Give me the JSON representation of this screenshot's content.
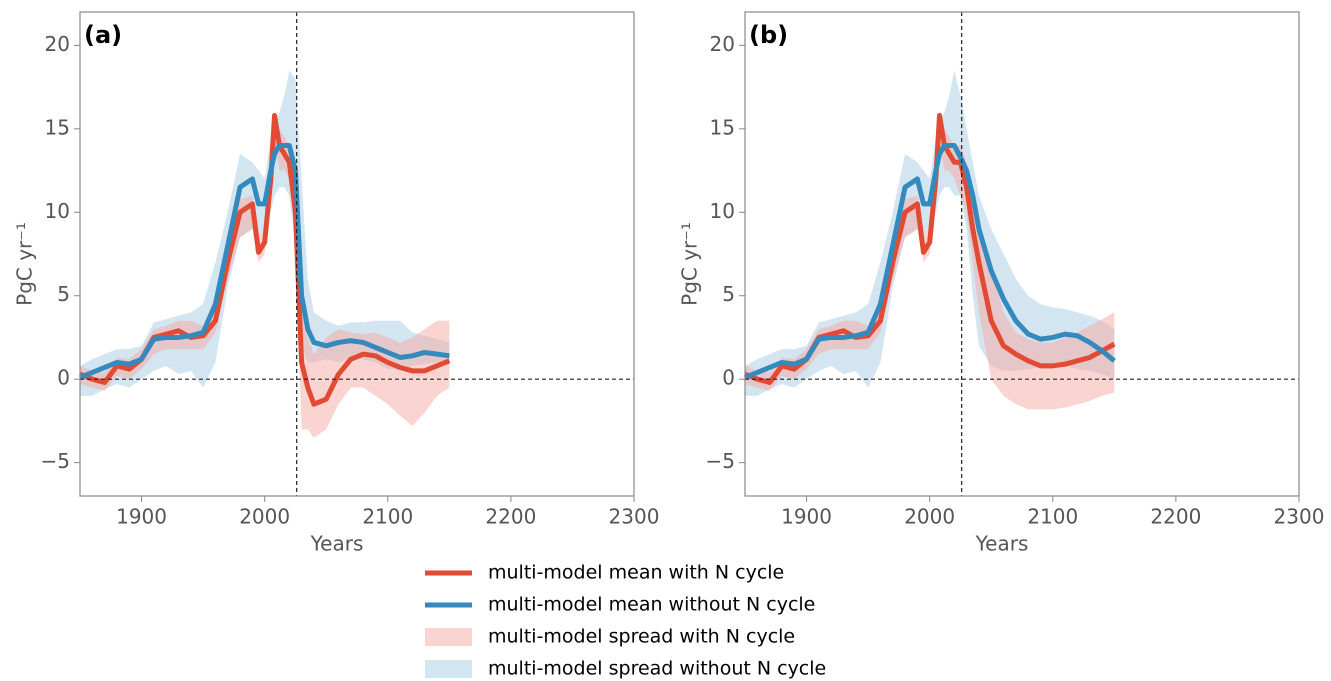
{
  "chart_data": [
    {
      "type": "line",
      "label": "(a)",
      "xlabel": "Years",
      "ylabel": "PgC yr⁻¹",
      "xlim": [
        1850,
        2300
      ],
      "xticks": [
        1900,
        2000,
        2100,
        2200,
        2300
      ],
      "ylim": [
        -7,
        22
      ],
      "yticks": [
        {
          "value": -5,
          "label": "−5"
        },
        0,
        5,
        10,
        15,
        20
      ],
      "hline": 0,
      "vline": 2026,
      "x": [
        1850,
        1860,
        1870,
        1880,
        1890,
        1900,
        1910,
        1920,
        1930,
        1940,
        1950,
        1960,
        1970,
        1980,
        1990,
        1995,
        2000,
        2005,
        2008,
        2012,
        2016,
        2020,
        2025,
        2030,
        2035,
        2040,
        2050,
        2060,
        2070,
        2080,
        2090,
        2100,
        2110,
        2120,
        2130,
        2140,
        2150
      ],
      "bands": [
        {
          "name": "multi-model spread without N cycle",
          "color": "#a9cbe6",
          "lower": [
            -1,
            -1,
            -0.6,
            -0.3,
            -0.5,
            0,
            0.5,
            0.8,
            0.3,
            0.5,
            -0.5,
            1,
            5.5,
            8.5,
            9,
            8.5,
            9,
            10,
            11,
            11.5,
            11.5,
            11,
            8,
            2,
            1,
            1,
            1.2,
            1,
            1.3,
            1.2,
            1,
            0.6,
            0.6,
            0.8,
            0.9,
            1,
            1
          ],
          "upper": [
            0.8,
            1.2,
            1.5,
            1.8,
            1.8,
            2,
            3.4,
            3.6,
            3.8,
            4,
            4.5,
            7,
            10,
            13.5,
            13,
            12.5,
            12,
            14.5,
            15.5,
            16,
            17,
            18.5,
            18,
            12,
            6,
            4,
            3.5,
            3.2,
            3.4,
            3.4,
            3.5,
            3.5,
            3.5,
            2.8,
            2.6,
            2.4,
            2.2
          ]
        },
        {
          "name": "multi-model spread with N cycle",
          "color": "#f5aaa2",
          "lower": [
            -0.3,
            -0.5,
            -0.7,
            0.2,
            0,
            0.6,
            1.5,
            1.8,
            1.8,
            1.8,
            1.8,
            2.8,
            6,
            8.5,
            9,
            7,
            7.5,
            11,
            14,
            12.5,
            12.5,
            12,
            8,
            -3,
            -3,
            -3.5,
            -3,
            -1.5,
            -0.5,
            -0.5,
            -1,
            -1.5,
            -2.2,
            -2.8,
            -2,
            -1,
            -0.5
          ],
          "upper": [
            0.8,
            0.5,
            0.4,
            1.3,
            1.2,
            1.8,
            3,
            3.2,
            3.5,
            3.5,
            3.2,
            4.5,
            7.8,
            10.8,
            11,
            8.5,
            9,
            13,
            16,
            15,
            14.5,
            14,
            12,
            4,
            2.5,
            1.5,
            2.5,
            3,
            2.8,
            2.7,
            2.8,
            2.5,
            2.2,
            2.5,
            3,
            3.5,
            3.5
          ]
        }
      ],
      "series": [
        {
          "name": "multi-model mean with N cycle",
          "color": "#e24a33",
          "values": [
            0.3,
            0,
            -0.2,
            0.8,
            0.6,
            1.2,
            2.5,
            2.7,
            2.9,
            2.5,
            2.6,
            3.5,
            7,
            10,
            10.5,
            7.6,
            8.2,
            12,
            15.8,
            14,
            13.5,
            13,
            10,
            1,
            -0.5,
            -1.5,
            -1.2,
            0.3,
            1.2,
            1.5,
            1.4,
            1,
            0.7,
            0.5,
            0.5,
            0.8,
            1.1
          ]
        },
        {
          "name": "multi-model mean without N cycle",
          "color": "#348abd",
          "values": [
            0.1,
            0.4,
            0.7,
            1,
            0.9,
            1.2,
            2.4,
            2.5,
            2.5,
            2.6,
            2.8,
            4.5,
            8,
            11.5,
            12,
            10.5,
            10.5,
            12.5,
            13.5,
            14,
            14,
            14,
            12.5,
            5,
            3,
            2.2,
            2,
            2.2,
            2.3,
            2.2,
            1.9,
            1.6,
            1.3,
            1.4,
            1.6,
            1.5,
            1.4
          ]
        }
      ]
    },
    {
      "type": "line",
      "label": "(b)",
      "xlabel": "Years",
      "ylabel": "PgC yr⁻¹",
      "xlim": [
        1850,
        2300
      ],
      "xticks": [
        1900,
        2000,
        2100,
        2200,
        2300
      ],
      "ylim": [
        -7,
        22
      ],
      "yticks": [
        {
          "value": -5,
          "label": "−5"
        },
        0,
        5,
        10,
        15,
        20
      ],
      "hline": 0,
      "vline": 2026,
      "x": [
        1850,
        1860,
        1870,
        1880,
        1890,
        1900,
        1910,
        1920,
        1930,
        1940,
        1950,
        1960,
        1970,
        1980,
        1990,
        1995,
        2000,
        2005,
        2008,
        2012,
        2016,
        2020,
        2025,
        2030,
        2035,
        2040,
        2050,
        2060,
        2070,
        2080,
        2090,
        2100,
        2110,
        2120,
        2130,
        2140,
        2150
      ],
      "bands": [
        {
          "color": "#a9cbe6",
          "lower": [
            -1,
            -1,
            -0.6,
            -0.3,
            -0.5,
            0,
            0.5,
            0.8,
            0.3,
            0.5,
            -0.5,
            1,
            5.5,
            8.5,
            9,
            8.5,
            9,
            10,
            11,
            11.5,
            11.5,
            11,
            11,
            9,
            5,
            2,
            0.8,
            0.5,
            0.5,
            0.6,
            0.7,
            0.8,
            0.8,
            0.6,
            0.5,
            0.3,
            0
          ],
          "upper": [
            0.8,
            1.2,
            1.5,
            1.8,
            1.8,
            2,
            3.4,
            3.6,
            3.8,
            4,
            4.5,
            7,
            10,
            13.5,
            13,
            12.5,
            12,
            14.5,
            15.5,
            16,
            17,
            18.5,
            17,
            15,
            13,
            11,
            9,
            7.5,
            6,
            5,
            4.5,
            4.3,
            4.2,
            4,
            3.8,
            3.5,
            3
          ]
        },
        {
          "color": "#f5aaa2",
          "lower": [
            -0.3,
            -0.5,
            -0.7,
            0.2,
            0,
            0.6,
            1.5,
            1.8,
            1.8,
            1.8,
            1.8,
            2.8,
            6,
            8.5,
            9,
            7,
            7.5,
            11,
            14,
            12.5,
            12.5,
            12,
            11,
            10,
            7,
            4,
            0,
            -1,
            -1.5,
            -1.8,
            -1.8,
            -1.8,
            -1.7,
            -1.5,
            -1.3,
            -1,
            -0.8
          ],
          "upper": [
            0.8,
            0.5,
            0.4,
            1.3,
            1.2,
            1.8,
            3,
            3.2,
            3.5,
            3.5,
            3.2,
            4.5,
            7.8,
            10.8,
            11,
            8.5,
            9,
            13,
            16,
            15,
            14.5,
            14,
            14,
            13,
            11,
            9,
            6.5,
            4,
            2.8,
            2.4,
            2.2,
            2.2,
            2.5,
            2.8,
            3.2,
            3.6,
            4
          ]
        }
      ],
      "series": [
        {
          "color": "#e24a33",
          "values": [
            0.3,
            0,
            -0.2,
            0.8,
            0.6,
            1.2,
            2.5,
            2.7,
            2.9,
            2.5,
            2.6,
            3.5,
            7,
            10,
            10.5,
            7.6,
            8.2,
            12,
            15.8,
            14,
            13.5,
            13,
            13,
            11.5,
            9,
            7,
            3.5,
            2,
            1.5,
            1.1,
            0.8,
            0.8,
            0.9,
            1.1,
            1.3,
            1.7,
            2.1
          ]
        },
        {
          "color": "#348abd",
          "values": [
            0.1,
            0.4,
            0.7,
            1,
            0.9,
            1.2,
            2.4,
            2.5,
            2.5,
            2.6,
            2.8,
            4.5,
            8,
            11.5,
            12,
            10.5,
            10.5,
            12.5,
            13.5,
            14,
            14,
            14,
            13.3,
            12.5,
            11,
            9,
            6.5,
            4.8,
            3.5,
            2.7,
            2.4,
            2.5,
            2.7,
            2.6,
            2.2,
            1.7,
            1.1
          ]
        }
      ]
    }
  ]
}
